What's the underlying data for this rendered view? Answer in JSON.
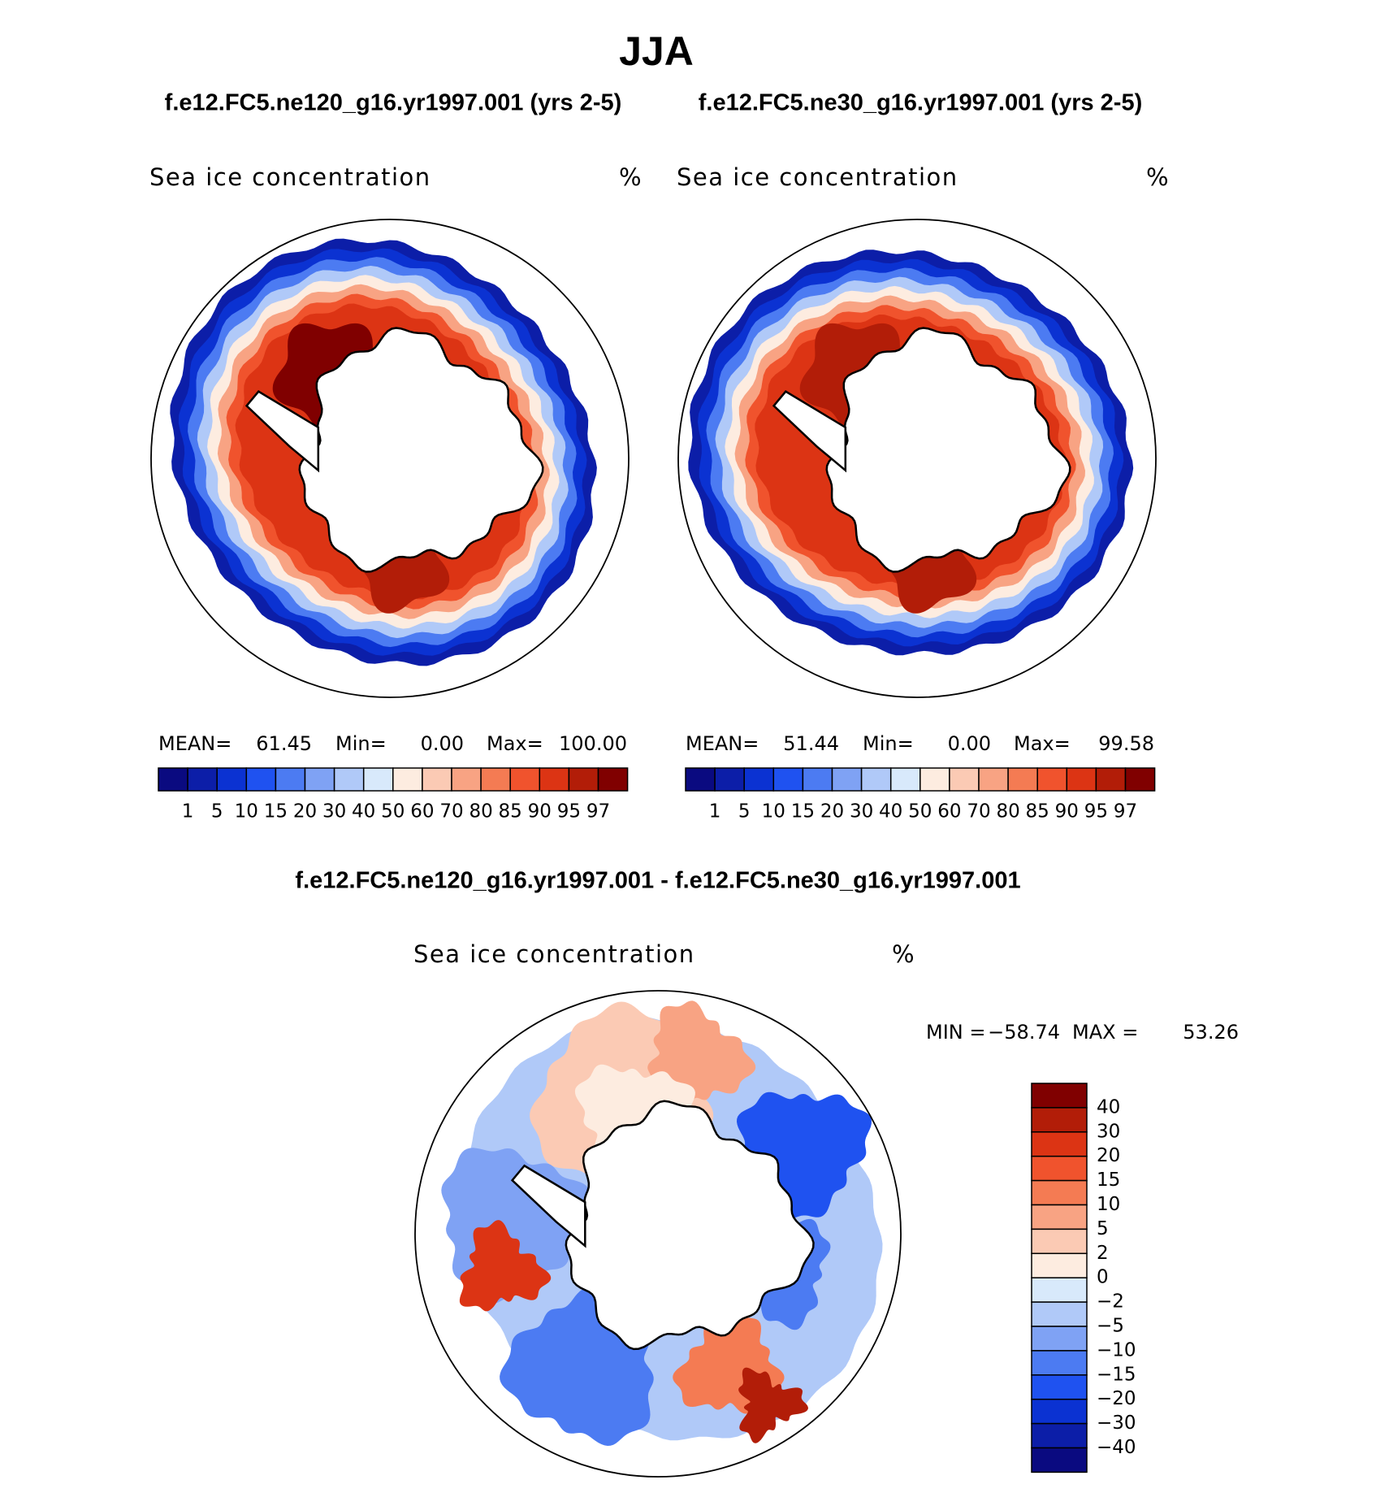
{
  "title": "JJA",
  "panels": [
    {
      "case": "f.e12.FC5.ne120_g16.yr1997.001 (yrs 2-5)",
      "label": "Sea ice concentration",
      "units": "%",
      "stats": [
        "MEAN=",
        "61.45",
        "Min=",
        "0.00",
        "Max=",
        "100.00"
      ]
    },
    {
      "case": "f.e12.FC5.ne30_g16.yr1997.001 (yrs 2-5)",
      "label": "Sea ice concentration",
      "units": "%",
      "stats": [
        "MEAN=",
        "51.44",
        "Min=",
        "0.00",
        "Max=",
        "99.58"
      ]
    }
  ],
  "colorbar": {
    "colors": [
      "#0a0a80",
      "#0c1ea8",
      "#0b32d2",
      "#1f52f0",
      "#4c7bf2",
      "#7fa2f4",
      "#b0c9f8",
      "#d8e9fb",
      "#fdece0",
      "#fbcab4",
      "#f8a383",
      "#f47b53",
      "#f0532d",
      "#dc3414",
      "#b21d08",
      "#800000"
    ],
    "labels": [
      "1",
      "5",
      "10",
      "15",
      "20",
      "30",
      "40",
      "50",
      "60",
      "70",
      "80",
      "85",
      "90",
      "95",
      "97"
    ]
  },
  "difference": {
    "title": "f.e12.FC5.ne120_g16.yr1997.001 - f.e12.FC5.ne30_g16.yr1997.001",
    "label": "Sea ice concentration",
    "units": "%",
    "stats": [
      "MIN =",
      "−58.74",
      "MAX =",
      "53.26"
    ],
    "colorbar": {
      "colors": [
        "#800000",
        "#b21d08",
        "#dc3414",
        "#f0532d",
        "#f47b53",
        "#f8a383",
        "#fbcab4",
        "#fdece0",
        "#d8e9fb",
        "#b0c9f8",
        "#7fa2f4",
        "#4c7bf2",
        "#1f52f0",
        "#0b32d2",
        "#0c1ea8",
        "#0a0a80"
      ],
      "labels": [
        "40",
        "30",
        "20",
        "15",
        "10",
        "5",
        "2",
        "0",
        "−2",
        "−5",
        "−10",
        "−15",
        "−20",
        "−30",
        "−40"
      ]
    }
  }
}
